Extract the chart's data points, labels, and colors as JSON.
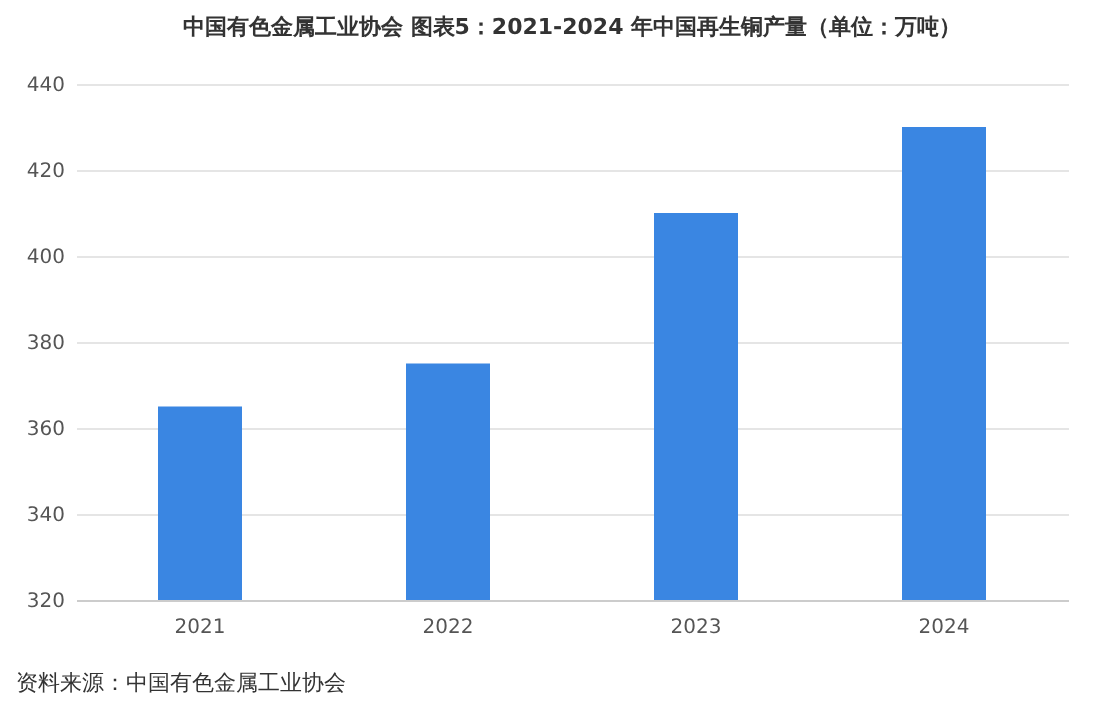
{
  "chart_data": {
    "type": "bar",
    "title": "中国有色金属工业协会  图表5：2021-2024 年中国再生铜产量（单位：万吨）",
    "categories": [
      "2021",
      "2022",
      "2023",
      "2024"
    ],
    "values": [
      365,
      375,
      410,
      430
    ],
    "color": "#3a86e2",
    "ylim": [
      320,
      440
    ],
    "yticks": [
      320,
      340,
      360,
      380,
      400,
      420,
      440
    ],
    "grid": "y",
    "annotations": [
      "资料来源：中国有色金属工业协会"
    ]
  }
}
